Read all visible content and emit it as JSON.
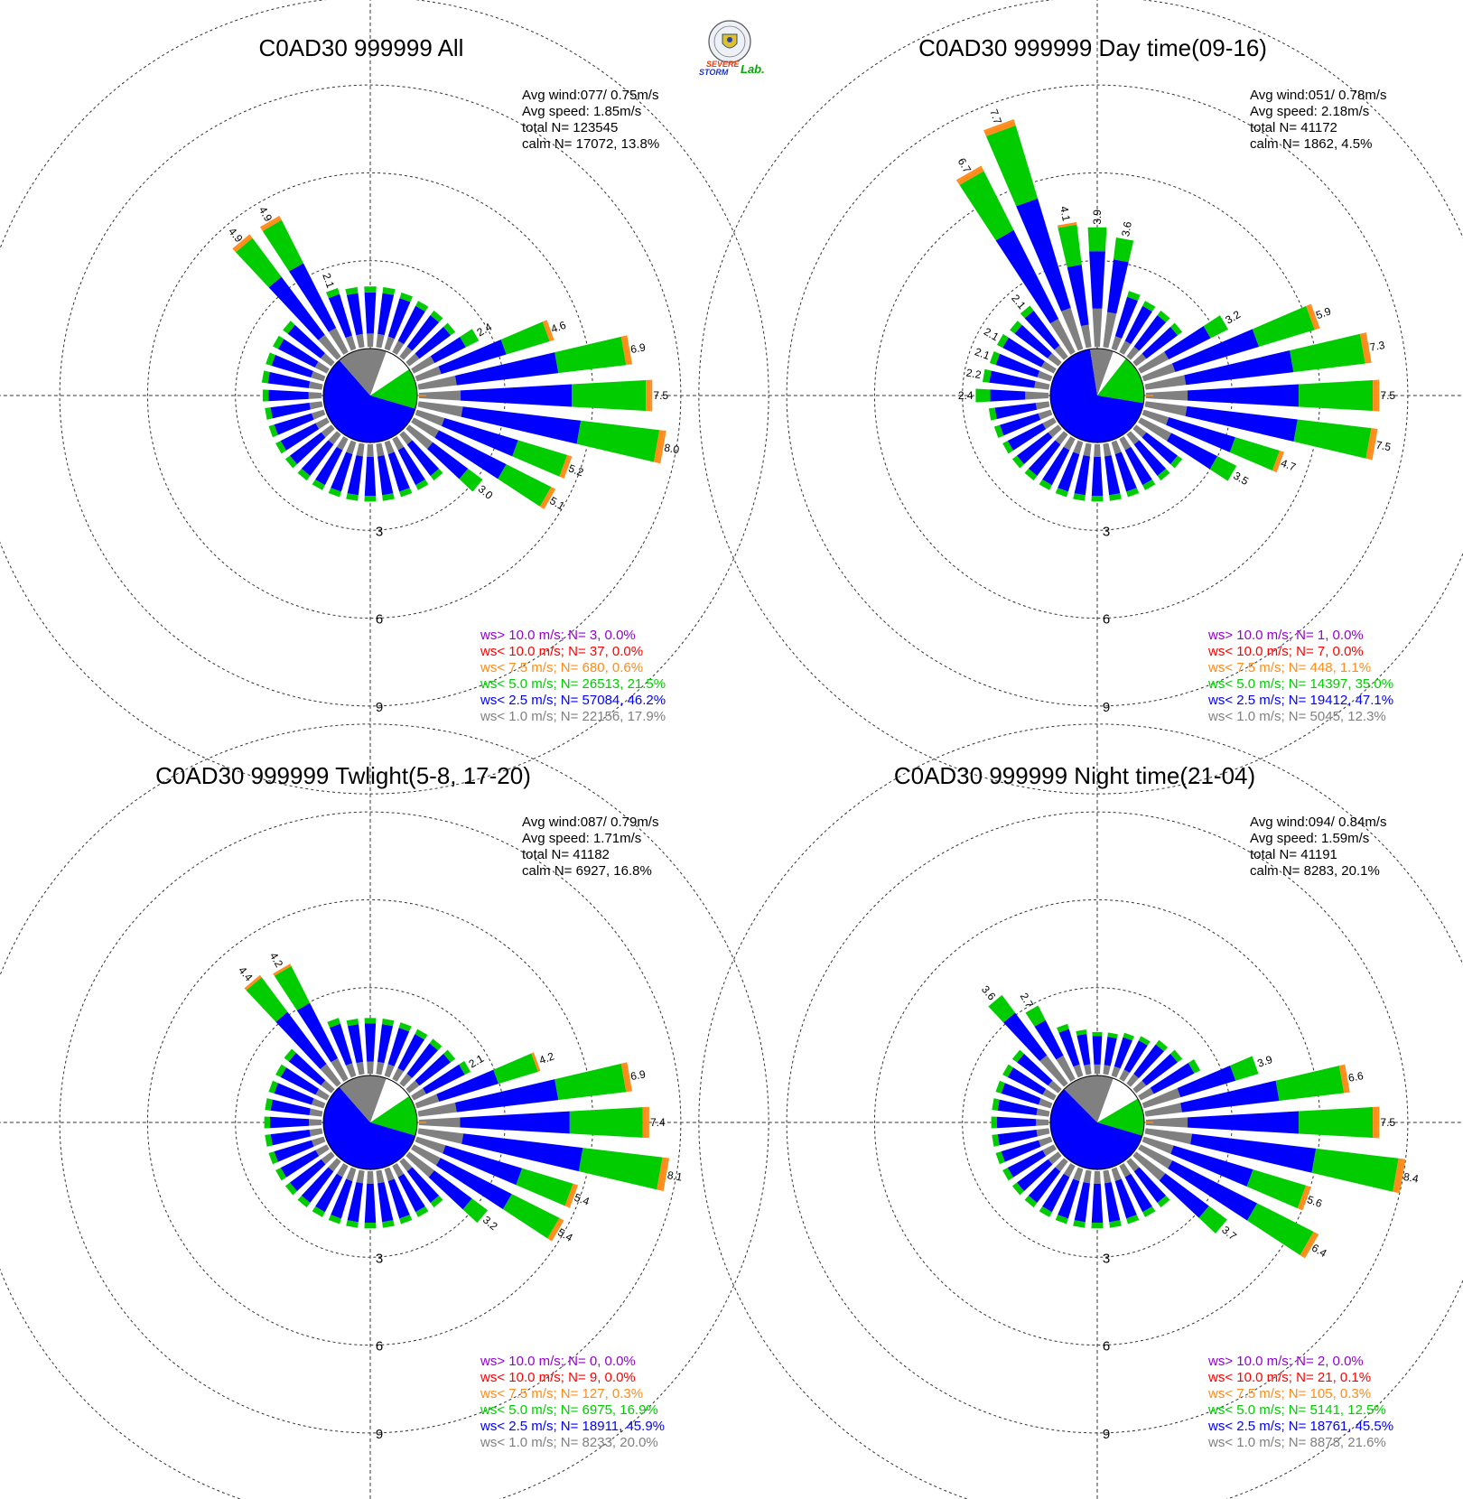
{
  "logo": {
    "word1": "SEVERE",
    "word2": "STORM",
    "word3": "Lab."
  },
  "colors": {
    "lt1": "#808080",
    "lt2_5": "#0000ff",
    "lt5": "#00cc00",
    "lt7_5": "#ff8c1a",
    "lt10": "#ff0000",
    "gt10": "#9400d3"
  },
  "ring_labels": [
    "3",
    "6",
    "9"
  ],
  "chart_data": [
    {
      "type": "windrose",
      "title": "C0AD30 999999 All",
      "info": [
        "Avg wind:077/ 0.75m/s",
        "Avg speed: 1.85m/s",
        "total N=      123545",
        "calm N=  17072,  13.8%"
      ],
      "sectors": 36,
      "rlim": [
        0,
        9
      ],
      "calm_pie": {
        "white": 0.1,
        "green": 0.14,
        "blue": 0.59,
        "gray": 0.17
      },
      "values": [
        2.0,
        2.0,
        1.95,
        1.9,
        1.9,
        1.9,
        2.4,
        4.6,
        6.9,
        7.5,
        8.0,
        5.2,
        5.1,
        3.0,
        1.9,
        1.9,
        1.9,
        1.9,
        1.9,
        1.9,
        1.9,
        1.9,
        1.9,
        1.9,
        1.9,
        1.9,
        1.9,
        1.95,
        2.0,
        2.0,
        2.0,
        2.0,
        4.9,
        4.9,
        2.1,
        2.0
      ],
      "bar_labels": {
        "6": "2.4",
        "7": "4.6",
        "8": "6.9",
        "9": "7.5",
        "10": "8.0",
        "11": "5.2",
        "12": "5.1",
        "13": "3.0",
        "32": "4.9",
        "33": "4.9",
        "34": "2.1"
      },
      "legend": [
        {
          "text": "ws> 10.0 m/s; N=     3,  0.0%",
          "color": "#9400d3"
        },
        {
          "text": "ws< 10.0 m/s; N=    37,  0.0%",
          "color": "#ff0000"
        },
        {
          "text": "ws<  7.5 m/s; N=   680,  0.6%",
          "color": "#ff8c1a"
        },
        {
          "text": "ws<  5.0 m/s; N= 26513, 21.5%",
          "color": "#00cc00"
        },
        {
          "text": "ws<  2.5 m/s; N= 57084, 46.2%",
          "color": "#0000ff"
        },
        {
          "text": "ws<  1.0 m/s; N= 22156, 17.9%",
          "color": "#808080"
        }
      ]
    },
    {
      "type": "windrose",
      "title": "C0AD30 999999 Day time(09-16)",
      "info": [
        "Avg wind:051/ 0.78m/s",
        "Avg speed: 2.18m/s",
        "total N=       41172",
        "calm N=   1862,   4.5%"
      ],
      "sectors": 36,
      "rlim": [
        0,
        9
      ],
      "calm_pie": {
        "white": 0.05,
        "green": 0.17,
        "blue": 0.7,
        "gray": 0.08
      },
      "values": [
        3.9,
        3.6,
        2.0,
        1.9,
        1.9,
        1.9,
        3.2,
        5.9,
        7.3,
        7.5,
        7.5,
        4.7,
        3.5,
        1.9,
        1.9,
        1.9,
        1.9,
        1.9,
        1.9,
        1.9,
        1.9,
        1.9,
        1.9,
        1.9,
        1.9,
        1.95,
        2.0,
        2.4,
        2.2,
        2.1,
        2.1,
        2.0,
        2.1,
        6.7,
        7.7,
        4.1
      ],
      "bar_labels": {
        "0": "3.9",
        "1": "3.6",
        "6": "3.2",
        "7": "5.9",
        "8": "7.3",
        "9": "7.5",
        "10": "7.5",
        "11": "4.7",
        "12": "3.5",
        "27": "2.4",
        "28": "2.2",
        "29": "2.1",
        "30": "2.1",
        "32": "2.1",
        "33": "6.7",
        "34": "7.7",
        "35": "4.1"
      },
      "legend": [
        {
          "text": "ws> 10.0 m/s; N=     1,  0.0%",
          "color": "#9400d3"
        },
        {
          "text": "ws< 10.0 m/s; N=     7,  0.0%",
          "color": "#ff0000"
        },
        {
          "text": "ws<  7.5 m/s; N=   448,  1.1%",
          "color": "#ff8c1a"
        },
        {
          "text": "ws<  5.0 m/s; N= 14397, 35.0%",
          "color": "#00cc00"
        },
        {
          "text": "ws<  2.5 m/s; N= 19412, 47.1%",
          "color": "#0000ff"
        },
        {
          "text": "ws<  1.0 m/s; N=  5045, 12.3%",
          "color": "#808080"
        }
      ]
    },
    {
      "type": "windrose",
      "title": "C0AD30 999999 Twlight(5-8, 17-20)",
      "info": [
        "Avg wind:087/ 0.79m/s",
        "Avg speed: 1.71m/s",
        "total N=       41182",
        "calm N=   6927,  16.8%"
      ],
      "sectors": 36,
      "rlim": [
        0,
        9
      ],
      "calm_pie": {
        "white": 0.1,
        "green": 0.14,
        "blue": 0.59,
        "gray": 0.17
      },
      "values": [
        1.85,
        1.85,
        1.85,
        1.85,
        1.85,
        1.9,
        2.1,
        4.2,
        6.9,
        7.4,
        8.1,
        5.4,
        5.4,
        3.2,
        1.9,
        1.9,
        1.9,
        1.9,
        1.9,
        1.9,
        1.9,
        1.9,
        1.9,
        1.9,
        1.9,
        1.9,
        1.9,
        1.9,
        1.9,
        1.9,
        1.9,
        1.95,
        4.4,
        4.2,
        2.0,
        1.85
      ],
      "bar_labels": {
        "6": "2.1",
        "7": "4.2",
        "8": "6.9",
        "9": "7.4",
        "10": "8.1",
        "11": "5.4",
        "12": "5.4",
        "13": "3.2",
        "32": "4.4",
        "33": "4.2"
      },
      "legend": [
        {
          "text": "ws> 10.0 m/s; N=     0,  0.0%",
          "color": "#9400d3"
        },
        {
          "text": "ws< 10.0 m/s; N=     9,  0.0%",
          "color": "#ff0000"
        },
        {
          "text": "ws<  7.5 m/s; N=   127,  0.3%",
          "color": "#ff8c1a"
        },
        {
          "text": "ws<  5.0 m/s; N=  6975, 16.9%",
          "color": "#00cc00"
        },
        {
          "text": "ws<  2.5 m/s; N= 18911, 45.9%",
          "color": "#0000ff"
        },
        {
          "text": "ws<  1.0 m/s; N=  8233, 20.0%",
          "color": "#808080"
        }
      ]
    },
    {
      "type": "windrose",
      "title": "C0AD30 999999 Night time(21-04)",
      "info": [
        "Avg wind:094/ 0.84m/s",
        "Avg speed: 1.59m/s",
        "total N=       41191",
        "calm N=   8283,  20.1%"
      ],
      "sectors": 36,
      "rlim": [
        0,
        9
      ],
      "calm_pie": {
        "white": 0.11,
        "green": 0.13,
        "blue": 0.58,
        "gray": 0.18
      },
      "values": [
        1.4,
        1.4,
        1.5,
        1.6,
        1.8,
        1.9,
        2.2,
        3.9,
        6.6,
        7.5,
        8.4,
        5.6,
        6.4,
        3.7,
        1.9,
        1.9,
        1.9,
        1.9,
        1.9,
        1.9,
        1.9,
        1.9,
        1.9,
        1.9,
        1.9,
        1.9,
        1.9,
        1.9,
        1.9,
        1.9,
        1.9,
        1.9,
        3.6,
        2.7,
        1.8,
        1.5
      ],
      "bar_labels": {
        "7": "3.9",
        "8": "6.6",
        "9": "7.5",
        "10": "8.4",
        "11": "5.6",
        "12": "6.4",
        "13": "3.7",
        "32": "3.6",
        "33": "2.7"
      },
      "legend": [
        {
          "text": "ws> 10.0 m/s; N=     2,  0.0%",
          "color": "#9400d3"
        },
        {
          "text": "ws< 10.0 m/s; N=    21,  0.1%",
          "color": "#ff0000"
        },
        {
          "text": "ws<  7.5 m/s; N=   105,  0.3%",
          "color": "#ff8c1a"
        },
        {
          "text": "ws<  5.0 m/s; N=  5141, 12.5%",
          "color": "#00cc00"
        },
        {
          "text": "ws<  2.5 m/s; N= 18761, 45.5%",
          "color": "#0000ff"
        },
        {
          "text": "ws<  1.0 m/s; N=  8878, 21.6%",
          "color": "#808080"
        }
      ]
    }
  ]
}
